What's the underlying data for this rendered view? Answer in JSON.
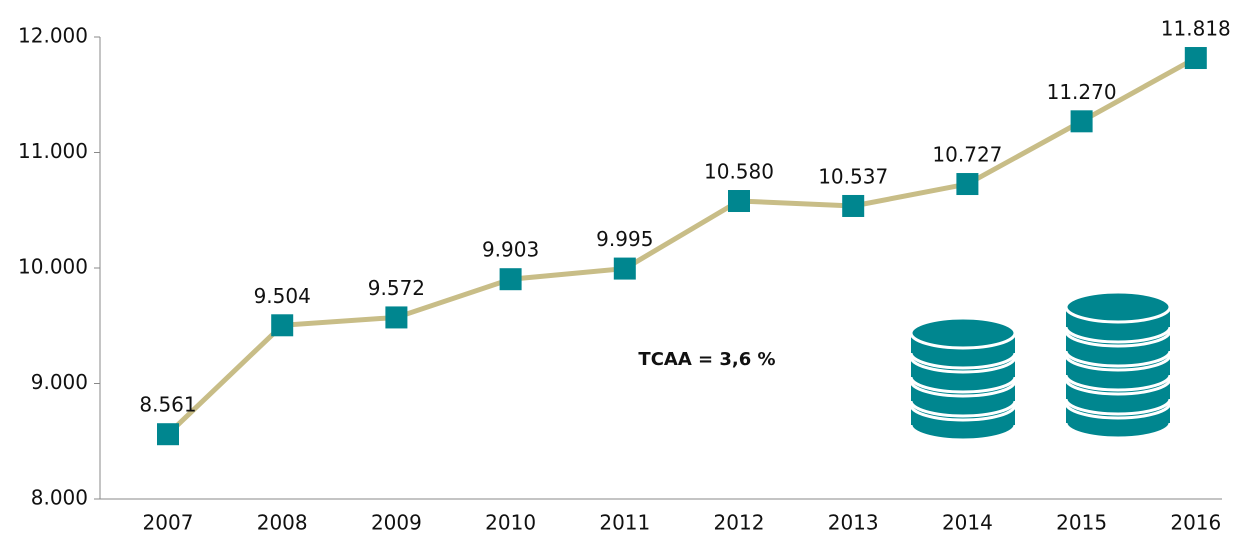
{
  "chart_data": {
    "type": "line",
    "categories": [
      "2007",
      "2008",
      "2009",
      "2010",
      "2011",
      "2012",
      "2013",
      "2014",
      "2015",
      "2016"
    ],
    "values": [
      8561,
      9504,
      9572,
      9903,
      9995,
      10580,
      10537,
      10727,
      11270,
      11818
    ],
    "value_labels": [
      "8.561",
      "9.504",
      "9.572",
      "9.903",
      "9.995",
      "10.580",
      "10.537",
      "10.727",
      "11.270",
      "11.818"
    ],
    "line_color": "#c8bd87",
    "marker_color": "#00868f",
    "ylim": [
      8000,
      12000
    ],
    "yticks": [
      {
        "value": 8000,
        "label": "8.000"
      },
      {
        "value": 9000,
        "label": "9.000"
      },
      {
        "value": 10000,
        "label": "10.000"
      },
      {
        "value": 11000,
        "label": "11.000"
      },
      {
        "value": 12000,
        "label": "12.000"
      }
    ],
    "annotation": "TCAA = 3,6 %"
  }
}
